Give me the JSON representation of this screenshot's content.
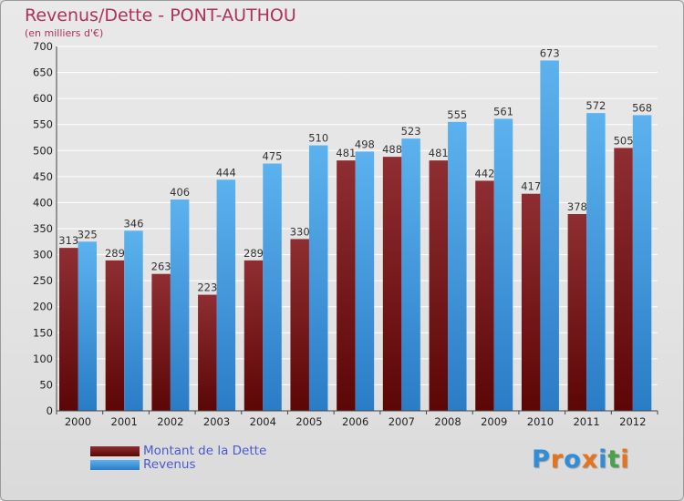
{
  "title": "Revenus/Dette - PONT-AUTHOU",
  "subtitle": "(en milliers d'€)",
  "legend": [
    {
      "label": "Montant de la Dette",
      "color": "#7a1818"
    },
    {
      "label": "Revenus",
      "color": "#3c9be0"
    }
  ],
  "logo": {
    "text": "Proxiti",
    "letter_colors": [
      "#2e8fd8",
      "#e8731a",
      "#2e8fd8",
      "#e8731a",
      "#2e8fd8",
      "#49a24a",
      "#e8731a"
    ]
  },
  "chart_data": {
    "type": "bar",
    "categories": [
      "2000",
      "2001",
      "2002",
      "2003",
      "2004",
      "2005",
      "2006",
      "2007",
      "2008",
      "2009",
      "2010",
      "2011",
      "2012"
    ],
    "series": [
      {
        "name": "Montant de la Dette",
        "color": "#7a1818",
        "values": [
          313,
          289,
          263,
          223,
          289,
          330,
          481,
          488,
          481,
          442,
          417,
          378,
          505
        ]
      },
      {
        "name": "Revenus",
        "color": "#3c9be0",
        "values": [
          325,
          346,
          406,
          444,
          475,
          510,
          498,
          523,
          555,
          561,
          673,
          572,
          568
        ]
      }
    ],
    "ylim": [
      0,
      700
    ],
    "yticks": [
      0,
      50,
      100,
      150,
      200,
      250,
      300,
      350,
      400,
      450,
      500,
      550,
      600,
      650,
      700
    ],
    "grid": true,
    "legend_position": "bottom-left"
  }
}
